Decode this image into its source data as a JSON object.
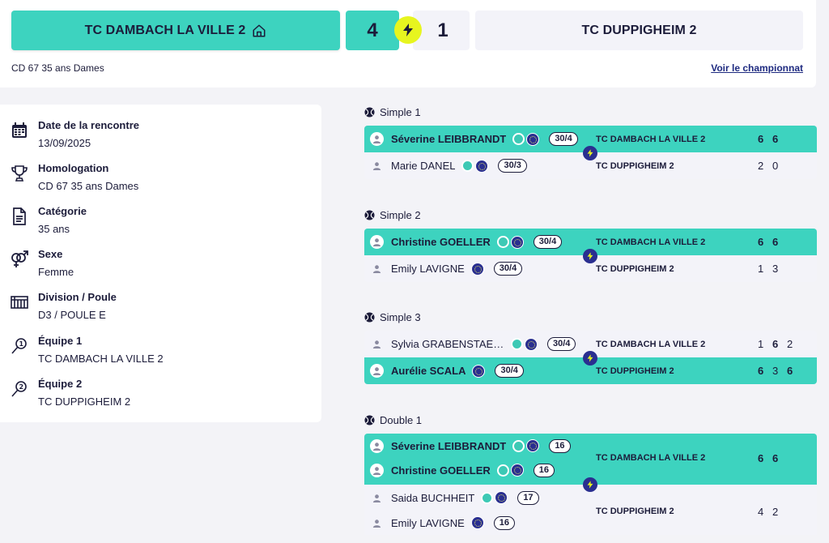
{
  "header": {
    "team1": "TC DAMBACH LA VILLE 2",
    "team2": "TC DUPPIGHEIM 2",
    "score1": "4",
    "score2": "1",
    "division": "CD 67 35 ans Dames",
    "link": "Voir le championnat"
  },
  "info": [
    {
      "title": "Date de la rencontre",
      "value": "13/09/2025",
      "icon": "calendar-icon"
    },
    {
      "title": "Homologation",
      "value": "CD 67 35 ans Dames",
      "icon": "trophy-icon"
    },
    {
      "title": "Catégorie",
      "value": "35 ans",
      "icon": "document-icon"
    },
    {
      "title": "Sexe",
      "value": "Femme",
      "icon": "gender-icon"
    },
    {
      "title": "Division / Poule",
      "value": "D3 / POULE E",
      "icon": "table-icon"
    },
    {
      "title": "Équipe 1",
      "value": "TC DAMBACH LA VILLE 2",
      "icon": "racket-1-icon"
    },
    {
      "title": "Équipe 2",
      "value": "TC DUPPIGHEIM 2",
      "icon": "racket-2-icon"
    }
  ],
  "matches": [
    {
      "title": "Simple 1",
      "p1": {
        "name": "Séverine LEIBBRANDT",
        "rank": "30/4",
        "ball": true,
        "eu": true
      },
      "p2": {
        "name": "Marie DANEL",
        "rank": "30/3",
        "ball": true,
        "eu": true
      },
      "team1": "TC DAMBACH LA VILLE 2",
      "team2": "TC DUPPIGHEIM 2",
      "s1": [
        "6",
        "6"
      ],
      "s2": [
        "2",
        "0"
      ]
    },
    {
      "title": "Simple 2",
      "p1": {
        "name": "Christine GOELLER",
        "rank": "30/4",
        "ball": true,
        "eu": true
      },
      "p2": {
        "name": "Emily LAVIGNE",
        "rank": "30/4",
        "ball": false,
        "eu": true
      },
      "team1": "TC DAMBACH LA VILLE 2",
      "team2": "TC DUPPIGHEIM 2",
      "s1": [
        "6",
        "6"
      ],
      "s2": [
        "1",
        "3"
      ]
    },
    {
      "title": "Simple 3",
      "p1": {
        "name": "Sylvia GRABENSTAETTER",
        "rank": "30/4",
        "ball": true,
        "eu": true
      },
      "p2": {
        "name": "Aurélie SCALA",
        "rank": "30/4",
        "ball": false,
        "eu": true
      },
      "team1": "TC DAMBACH LA VILLE 2",
      "team2": "TC DUPPIGHEIM 2",
      "s1": [
        "1",
        "6",
        "2"
      ],
      "s2": [
        "6",
        "3",
        "6"
      ]
    },
    {
      "title": "Double 1",
      "p1a": {
        "name": "Séverine LEIBBRANDT",
        "rank": "16"
      },
      "p1b": {
        "name": "Christine GOELLER",
        "rank": "16"
      },
      "p2a": {
        "name": "Saida BUCHHEIT",
        "rank": "17"
      },
      "p2b": {
        "name": "Emily LAVIGNE",
        "rank": "16"
      },
      "team1": "TC DAMBACH LA VILLE 2",
      "team2": "TC DUPPIGHEIM 2",
      "s1": [
        "6",
        "6"
      ],
      "s2": [
        "4",
        "2"
      ]
    }
  ]
}
